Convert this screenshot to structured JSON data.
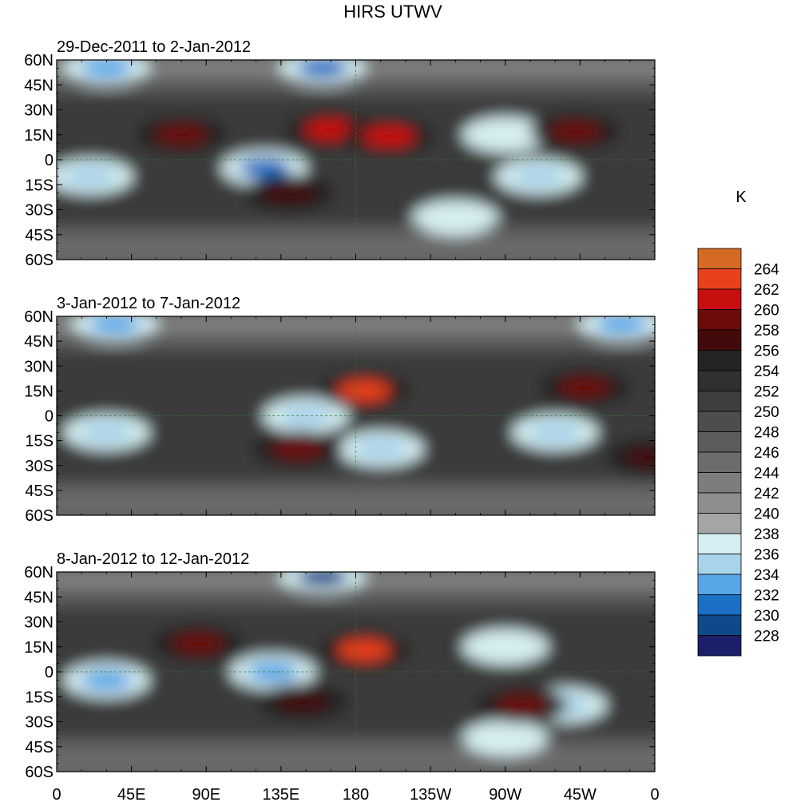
{
  "chart_data": {
    "type": "heatmap",
    "title": "HIRS UTWV",
    "units": "K",
    "lat_ticks": [
      "60N",
      "45N",
      "30N",
      "15N",
      "0",
      "15S",
      "30S",
      "45S",
      "60S"
    ],
    "lon_ticks": [
      "0",
      "45E",
      "90E",
      "135E",
      "180",
      "135W",
      "90W",
      "45W",
      "0"
    ],
    "lon_range": [
      0,
      360
    ],
    "lat_range": [
      -60,
      60
    ],
    "colorbar": {
      "levels": [
        228,
        230,
        232,
        234,
        236,
        238,
        240,
        242,
        244,
        246,
        248,
        250,
        252,
        254,
        256,
        258,
        260,
        262,
        264
      ],
      "colors": [
        "#1a1e6b",
        "#0e4a8a",
        "#1b6fc4",
        "#57a7e6",
        "#a8d3ea",
        "#d6eef1",
        "#a5a5a5",
        "#8e8e8e",
        "#7d7d7d",
        "#6c6c6c",
        "#5c5c5c",
        "#4d4d4d",
        "#3e3e3e",
        "#303030",
        "#242424",
        "#420a0a",
        "#6b0b0b",
        "#c80f0f",
        "#e8401c",
        "#d56a25"
      ]
    },
    "panels": [
      {
        "title": "29-Dec-2011 to 2-Jan-2012",
        "features": [
          {
            "kind": "max",
            "lon": 165,
            "lat": 18,
            "value": 261
          },
          {
            "kind": "max",
            "lon": 200,
            "lat": 14,
            "value": 260
          },
          {
            "kind": "max",
            "lon": 75,
            "lat": 15,
            "value": 258
          },
          {
            "kind": "max",
            "lon": 312,
            "lat": 17,
            "value": 258
          },
          {
            "kind": "max",
            "lon": 140,
            "lat": -20,
            "value": 257
          },
          {
            "kind": "min",
            "lon": 125,
            "lat": -5,
            "value": 231
          },
          {
            "kind": "min",
            "lon": 20,
            "lat": -10,
            "value": 235
          },
          {
            "kind": "min",
            "lon": 290,
            "lat": -10,
            "value": 235
          },
          {
            "kind": "min",
            "lon": 270,
            "lat": 15,
            "value": 236
          },
          {
            "kind": "min",
            "lon": 30,
            "lat": 55,
            "value": 232
          },
          {
            "kind": "min",
            "lon": 160,
            "lat": 55,
            "value": 231
          },
          {
            "kind": "min",
            "lon": 240,
            "lat": -35,
            "value": 236
          }
        ]
      },
      {
        "title": "3-Jan-2012 to 7-Jan-2012",
        "features": [
          {
            "kind": "max",
            "lon": 185,
            "lat": 15,
            "value": 262
          },
          {
            "kind": "max",
            "lon": 145,
            "lat": -20,
            "value": 259
          },
          {
            "kind": "max",
            "lon": 318,
            "lat": 17,
            "value": 258
          },
          {
            "kind": "max",
            "lon": 358,
            "lat": -25,
            "value": 257
          },
          {
            "kind": "min",
            "lon": 150,
            "lat": 0,
            "value": 234
          },
          {
            "kind": "min",
            "lon": 195,
            "lat": -20,
            "value": 234
          },
          {
            "kind": "min",
            "lon": 30,
            "lat": -10,
            "value": 234
          },
          {
            "kind": "min",
            "lon": 300,
            "lat": -10,
            "value": 235
          },
          {
            "kind": "min",
            "lon": 35,
            "lat": 55,
            "value": 232
          },
          {
            "kind": "min",
            "lon": 340,
            "lat": 55,
            "value": 232
          }
        ]
      },
      {
        "title": "8-Jan-2012 to 12-Jan-2012",
        "features": [
          {
            "kind": "max",
            "lon": 185,
            "lat": 13,
            "value": 263
          },
          {
            "kind": "max",
            "lon": 85,
            "lat": 17,
            "value": 258
          },
          {
            "kind": "max",
            "lon": 280,
            "lat": -20,
            "value": 258
          },
          {
            "kind": "max",
            "lon": 148,
            "lat": -18,
            "value": 257
          },
          {
            "kind": "min",
            "lon": 130,
            "lat": 0,
            "value": 232
          },
          {
            "kind": "min",
            "lon": 30,
            "lat": -5,
            "value": 233
          },
          {
            "kind": "min",
            "lon": 270,
            "lat": 15,
            "value": 236
          },
          {
            "kind": "min",
            "lon": 160,
            "lat": 57,
            "value": 229
          },
          {
            "kind": "min",
            "lon": 305,
            "lat": -20,
            "value": 235
          },
          {
            "kind": "min",
            "lon": 270,
            "lat": -40,
            "value": 236
          }
        ]
      }
    ]
  }
}
